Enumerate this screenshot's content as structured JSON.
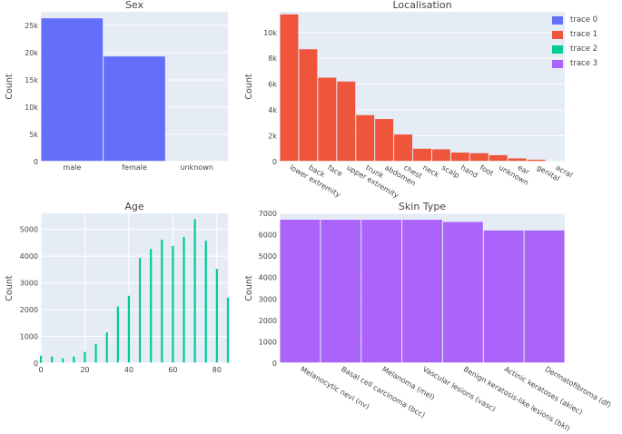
{
  "legend": {
    "items": [
      {
        "label": "trace 0",
        "color": "#636efa"
      },
      {
        "label": "trace 1",
        "color": "#EF553B"
      },
      {
        "label": "trace 2",
        "color": "#00cc96"
      },
      {
        "label": "trace 3",
        "color": "#ab63fa"
      }
    ]
  },
  "chart_data": [
    {
      "id": "sex",
      "type": "bar",
      "title": "Sex",
      "xlabel": "",
      "ylabel": "Count",
      "color": "#636efa",
      "categories": [
        "male",
        "female",
        "unknown"
      ],
      "values": [
        26300,
        19300,
        57
      ],
      "ylim": [
        0,
        27500
      ],
      "yticks": [
        0,
        5000,
        10000,
        15000,
        20000,
        25000
      ],
      "yticklabels": [
        "0",
        "5k",
        "10k",
        "15k",
        "20k",
        "25k"
      ],
      "grid": true
    },
    {
      "id": "localisation",
      "type": "bar",
      "title": "Localisation",
      "xlabel": "",
      "ylabel": "Count",
      "color": "#EF553B",
      "categories": [
        "lower extremity",
        "back",
        "face",
        "upper extremity",
        "trunk",
        "abdomen",
        "chest",
        "neck",
        "scalp",
        "hand",
        "foot",
        "unknown",
        "ear",
        "genital",
        "acral"
      ],
      "values": [
        11400,
        8700,
        6500,
        6200,
        3600,
        3300,
        2100,
        1000,
        950,
        700,
        650,
        500,
        250,
        150,
        40
      ],
      "ylim": [
        0,
        11600
      ],
      "yticks": [
        0,
        2000,
        4000,
        6000,
        8000,
        10000
      ],
      "yticklabels": [
        "0",
        "2k",
        "4k",
        "6k",
        "8k",
        "10k"
      ],
      "grid": true
    },
    {
      "id": "age",
      "type": "bar",
      "title": "Age",
      "xlabel": "",
      "ylabel": "Count",
      "color": "#00cc96",
      "x": [
        0,
        5,
        10,
        15,
        20,
        25,
        30,
        35,
        40,
        45,
        50,
        55,
        60,
        65,
        70,
        75,
        80,
        85
      ],
      "values": [
        280,
        250,
        180,
        250,
        420,
        720,
        1150,
        2120,
        2520,
        3930,
        4270,
        4620,
        4380,
        4720,
        5380,
        4580,
        3520,
        2450
      ],
      "xlim": [
        0,
        85
      ],
      "ylim": [
        0,
        5600
      ],
      "xticks": [
        0,
        20,
        40,
        60,
        80
      ],
      "xticklabels": [
        "0",
        "20",
        "40",
        "60",
        "80"
      ],
      "yticks": [
        0,
        1000,
        2000,
        3000,
        4000,
        5000
      ],
      "yticklabels": [
        "0",
        "1000",
        "2000",
        "3000",
        "4000",
        "5000"
      ],
      "grid": true
    },
    {
      "id": "skin",
      "type": "bar",
      "title": "Skin Type",
      "xlabel": "",
      "ylabel": "Count",
      "color": "#ab63fa",
      "categories": [
        "Melanocytic nevi (nv)",
        "Basal cell carcinoma (bcc)",
        "Melanoma (mel)",
        "Vascular lesions (vasc)",
        "Benign keratosis-like lesions (bkl)",
        "Actinic keratoses (akiec)",
        "Dermatofibroma (df)"
      ],
      "values": [
        6705,
        6700,
        6700,
        6700,
        6600,
        6200,
        6200
      ],
      "ylim": [
        0,
        7000
      ],
      "yticks": [
        0,
        1000,
        2000,
        3000,
        4000,
        5000,
        6000,
        7000
      ],
      "yticklabels": [
        "0",
        "1000",
        "2000",
        "3000",
        "4000",
        "5000",
        "6000",
        "7000"
      ],
      "grid": true
    }
  ]
}
